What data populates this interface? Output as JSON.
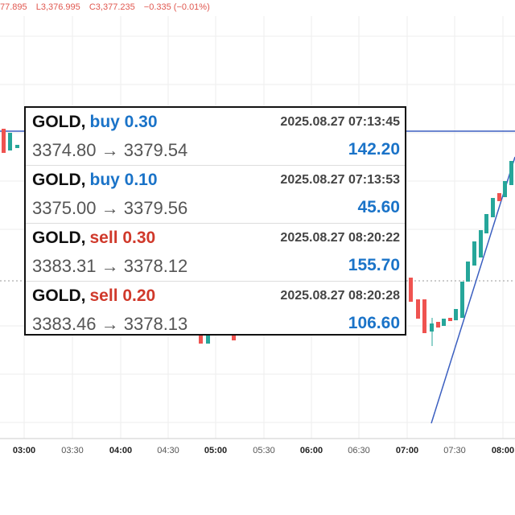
{
  "header": {
    "low_fragment": "77.895",
    "low": "L3,376.995",
    "close": "C3,377.235",
    "change": "−0.335 (−0.01%)"
  },
  "time_axis": [
    "03:00",
    "03:30",
    "04:00",
    "04:30",
    "05:00",
    "05:30",
    "06:00",
    "06:30",
    "07:00",
    "07:30",
    "08:00"
  ],
  "trades": [
    {
      "symbol": "GOLD,",
      "order": "buy 0.30",
      "time": "2025.08.27 07:13:45",
      "prices": "3374.80 → 3379.54",
      "profit": "142.20"
    },
    {
      "symbol": "GOLD,",
      "order": "buy 0.10",
      "time": "2025.08.27 07:13:53",
      "prices": "3375.00 → 3379.56",
      "profit": "45.60"
    },
    {
      "symbol": "GOLD,",
      "order": "sell 0.30",
      "time": "2025.08.27 08:20:22",
      "prices": "3383.31 → 3378.12",
      "profit": "155.70"
    },
    {
      "symbol": "GOLD,",
      "order": "sell 0.20",
      "time": "2025.08.27 08:20:28",
      "prices": "3383.46 → 3378.13",
      "profit": "106.60"
    }
  ]
}
